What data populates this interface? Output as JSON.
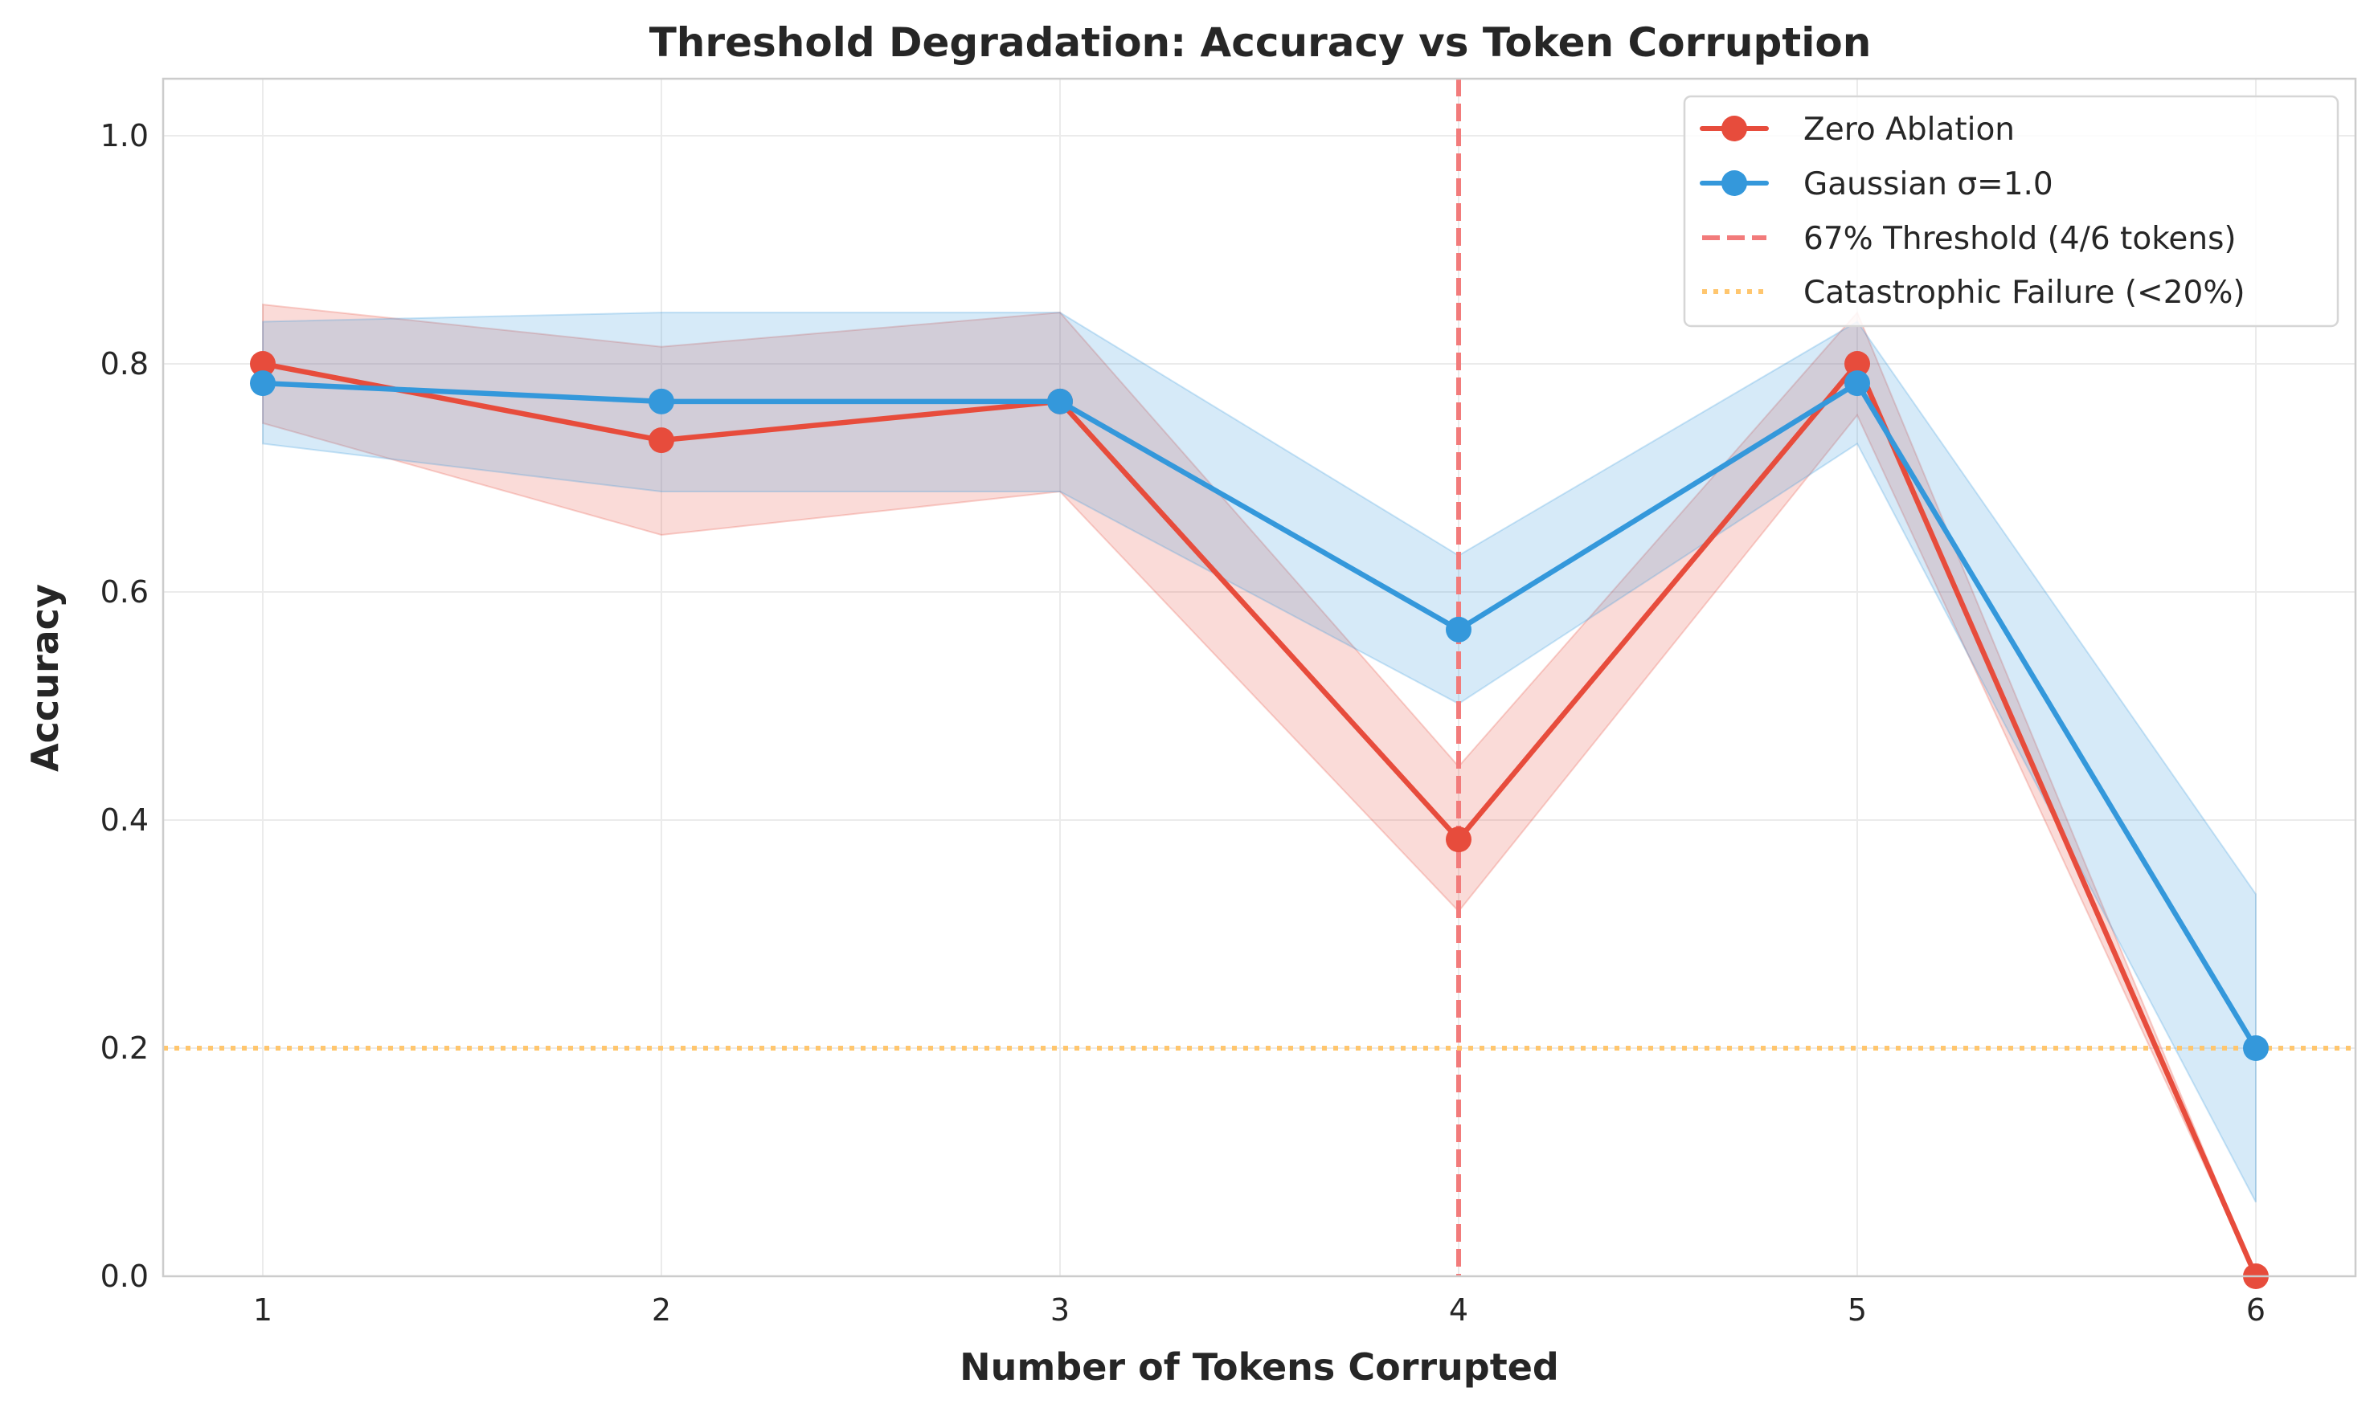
{
  "chart_data": {
    "type": "line",
    "title": "Threshold Degradation: Accuracy vs Token Corruption",
    "xlabel": "Number of Tokens Corrupted",
    "ylabel": "Accuracy",
    "x": [
      1,
      2,
      3,
      4,
      5,
      6
    ],
    "xlim": [
      0.75,
      6.25
    ],
    "ylim": [
      0.0,
      1.05
    ],
    "xticks": [
      "1",
      "2",
      "3",
      "4",
      "5",
      "6"
    ],
    "yticks": [
      "0.0",
      "0.2",
      "0.4",
      "0.6",
      "0.8",
      "1.0"
    ],
    "grid": true,
    "legend_position": "top-right",
    "series": [
      {
        "name": "Zero Ablation",
        "color": "#e74c3c",
        "values": [
          0.8,
          0.733,
          0.767,
          0.383,
          0.8,
          0.0
        ],
        "band_lower": [
          0.748,
          0.65,
          0.688,
          0.32,
          0.755,
          0.0
        ],
        "band_upper": [
          0.852,
          0.815,
          0.845,
          0.447,
          0.845,
          0.0
        ]
      },
      {
        "name": "Gaussian σ=1.0",
        "color": "#3498db",
        "values": [
          0.783,
          0.767,
          0.767,
          0.567,
          0.783,
          0.2
        ],
        "band_lower": [
          0.73,
          0.688,
          0.688,
          0.502,
          0.73,
          0.065
        ],
        "band_upper": [
          0.837,
          0.845,
          0.845,
          0.632,
          0.837,
          0.335
        ]
      }
    ],
    "reference_lines": [
      {
        "name": "67% Threshold (4/6 tokens)",
        "orientation": "vertical",
        "x": 4,
        "style": "dashed",
        "color": "#f27b7b"
      },
      {
        "name": "Catastrophic Failure (<20%)",
        "orientation": "horizontal",
        "y": 0.2,
        "style": "dotted",
        "color": "#ffc66e"
      }
    ]
  }
}
